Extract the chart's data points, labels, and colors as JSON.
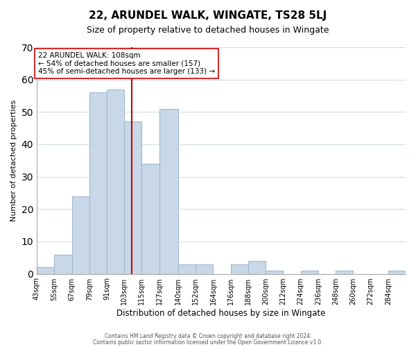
{
  "title": "22, ARUNDEL WALK, WINGATE, TS28 5LJ",
  "subtitle": "Size of property relative to detached houses in Wingate",
  "xlabel": "Distribution of detached houses by size in Wingate",
  "ylabel": "Number of detached properties",
  "bin_edges": [
    43,
    55,
    67,
    79,
    91,
    103,
    115,
    127,
    140,
    152,
    164,
    176,
    188,
    200,
    212,
    224,
    236,
    248,
    260,
    272,
    284,
    296
  ],
  "bin_labels": [
    "43sqm",
    "55sqm",
    "67sqm",
    "79sqm",
    "91sqm",
    "103sqm",
    "115sqm",
    "127sqm",
    "140sqm",
    "152sqm",
    "164sqm",
    "176sqm",
    "188sqm",
    "200sqm",
    "212sqm",
    "224sqm",
    "236sqm",
    "248sqm",
    "260sqm",
    "272sqm",
    "284sqm"
  ],
  "counts": [
    2,
    6,
    24,
    56,
    57,
    47,
    34,
    51,
    3,
    3,
    0,
    3,
    4,
    1,
    0,
    1,
    0,
    1,
    0,
    0,
    1
  ],
  "bar_color": "#c8d8e8",
  "bar_edgecolor": "#a0b8cc",
  "reference_line_x": 108,
  "reference_line_color": "#cc0000",
  "annotation_text": "22 ARUNDEL WALK: 108sqm\n← 54% of detached houses are smaller (157)\n45% of semi-detached houses are larger (133) →",
  "annotation_box_edgecolor": "#cc0000",
  "annotation_box_facecolor": "#ffffff",
  "ylim": [
    0,
    70
  ],
  "yticks": [
    0,
    10,
    20,
    30,
    40,
    50,
    60,
    70
  ],
  "footer_line1": "Contains HM Land Registry data © Crown copyright and database right 2024.",
  "footer_line2": "Contains public sector information licensed under the Open Government Licence v3.0.",
  "background_color": "#ffffff",
  "grid_color": "#d0dce8"
}
